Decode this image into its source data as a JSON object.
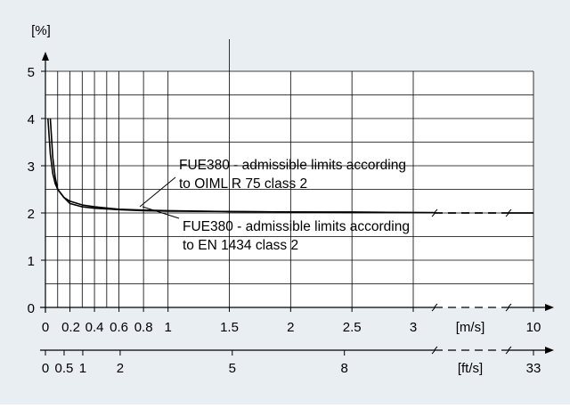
{
  "chart_data": {
    "type": "line",
    "ylabel": "[%]",
    "xlabel_primary": "[m/s]",
    "xlabel_secondary": "[ft/s]",
    "ylim": [
      0,
      5
    ],
    "yticks": [
      "0",
      "1",
      "2",
      "3",
      "4",
      "5"
    ],
    "x_ticks_primary": [
      {
        "v": 0,
        "label": "0"
      },
      {
        "v": 0.2,
        "label": "0.2"
      },
      {
        "v": 0.4,
        "label": "0.4"
      },
      {
        "v": 0.6,
        "label": "0.6"
      },
      {
        "v": 0.8,
        "label": "0.8"
      },
      {
        "v": 1,
        "label": "1"
      },
      {
        "v": 1.5,
        "label": "1.5"
      },
      {
        "v": 2,
        "label": "2"
      },
      {
        "v": 2.5,
        "label": "2.5"
      },
      {
        "v": 3,
        "label": "3"
      },
      {
        "v": 10,
        "label": "10"
      }
    ],
    "x_ticks_secondary": [
      {
        "v": 0,
        "label": "0"
      },
      {
        "v": 0.5,
        "label": "0.5"
      },
      {
        "v": 1,
        "label": "1"
      },
      {
        "v": 2,
        "label": "2"
      },
      {
        "v": 5,
        "label": "5"
      },
      {
        "v": 8,
        "label": "8"
      },
      {
        "v": 33,
        "label": "33"
      }
    ],
    "axis_break": "between 3 and 10 m/s",
    "grid": true,
    "series": [
      {
        "name": "FUE380 - admissible limits according to OIML R 75 class 2",
        "color": "#000000",
        "x": [
          0.02,
          0.04,
          0.06,
          0.08,
          0.1,
          0.15,
          0.2,
          0.3,
          0.4,
          0.6,
          0.8,
          1,
          1.5,
          2,
          2.5,
          3,
          10
        ],
        "y": [
          4.0,
          3.25,
          2.83,
          2.62,
          2.5,
          2.33,
          2.25,
          2.17,
          2.13,
          2.08,
          2.06,
          2.05,
          2.03,
          2.02,
          2.02,
          2.01,
          2.0
        ]
      },
      {
        "name": "FUE380 - admissible limits according to EN 1434 class 2",
        "color": "#000000",
        "x": [
          0.04,
          0.06,
          0.08,
          0.1,
          0.15,
          0.2,
          0.3,
          0.4,
          0.6,
          0.8,
          1,
          1.5,
          2,
          2.5,
          3,
          10
        ],
        "y": [
          4.0,
          3.17,
          2.75,
          2.5,
          2.33,
          2.2,
          2.13,
          2.1,
          2.07,
          2.05,
          2.04,
          2.03,
          2.02,
          2.01,
          2.01,
          2.0
        ]
      }
    ],
    "annotations": [
      {
        "lines": [
          "FUE380 - admissible limits according",
          "to OIML R 75 class 2"
        ]
      },
      {
        "lines": [
          "FUE380 - admissible limits according",
          "to EN 1434 class 2"
        ]
      }
    ],
    "colors": {
      "background": "#e8eef2",
      "plot_area": "#ffffff",
      "ink": "#000000"
    }
  }
}
